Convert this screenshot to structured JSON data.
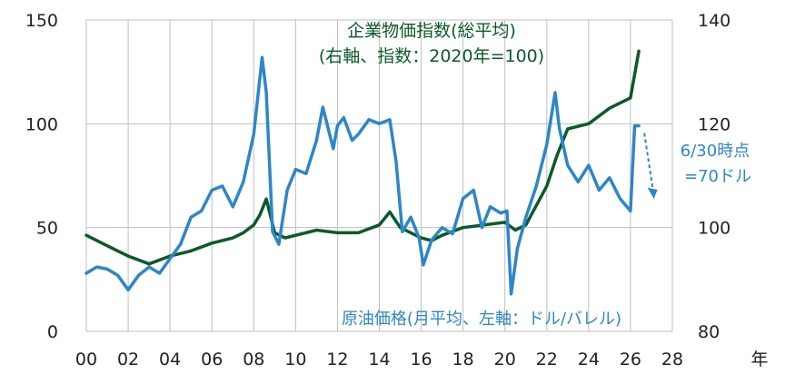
{
  "chart_data": {
    "type": "line",
    "x_tick_labels": [
      "00",
      "02",
      "04",
      "06",
      "08",
      "10",
      "12",
      "14",
      "16",
      "18",
      "20",
      "22",
      "24",
      "26",
      "28"
    ],
    "x_axis_unit": "年",
    "y_left": {
      "ticks": [
        0,
        50,
        100,
        150
      ],
      "range": [
        0,
        150
      ]
    },
    "y_right": {
      "ticks": [
        80,
        100,
        120,
        140
      ],
      "range": [
        80,
        140
      ]
    },
    "colors": {
      "oil": "#2e86c8",
      "cgpi": "#0b5a2a",
      "grid": "#bfbfbf",
      "callout": "#2e86c8"
    },
    "series": [
      {
        "key": "cgpi",
        "name_lines": [
          "企業物価指数(総平均)",
          "(右軸、指数：2020年=100)"
        ],
        "axis": "right",
        "x": [
          2000,
          2001,
          2002,
          2003,
          2004,
          2005,
          2006,
          2007,
          2007.5,
          2008,
          2008.3,
          2008.6,
          2009,
          2009.5,
          2010,
          2011,
          2012,
          2013,
          2014,
          2014.5,
          2015,
          2016,
          2016.5,
          2017,
          2018,
          2019,
          2020,
          2020.5,
          2021,
          2022,
          2022.5,
          2023,
          2024,
          2025,
          2026,
          2026.4
        ],
        "y": [
          98.5,
          96.5,
          94.5,
          93,
          94.5,
          95.5,
          97,
          98,
          99,
          100.5,
          102.5,
          105.5,
          99,
          98,
          98.5,
          99.5,
          99,
          99,
          100.5,
          103,
          100,
          98,
          97.5,
          98.5,
          100,
          100.5,
          101,
          99.5,
          100.5,
          108,
          114,
          119,
          120,
          123,
          125,
          134
        ]
      },
      {
        "key": "oil",
        "name_lines": [
          "原油価格(月平均、左軸：ドル/バレル)"
        ],
        "axis": "left",
        "x": [
          2000,
          2000.5,
          2001,
          2001.5,
          2002,
          2002.5,
          2003,
          2003.5,
          2004,
          2004.5,
          2005,
          2005.5,
          2006,
          2006.5,
          2007,
          2007.5,
          2008,
          2008.4,
          2008.6,
          2008.9,
          2009.2,
          2009.6,
          2010,
          2010.5,
          2011,
          2011.3,
          2011.8,
          2012,
          2012.3,
          2012.7,
          2013,
          2013.5,
          2014,
          2014.5,
          2014.8,
          2015.1,
          2015.5,
          2015.9,
          2016.1,
          2016.5,
          2017,
          2017.5,
          2018,
          2018.5,
          2018.9,
          2019.3,
          2019.8,
          2020.1,
          2020.3,
          2020.6,
          2021,
          2021.5,
          2022,
          2022.4,
          2022.6,
          2023,
          2023.5,
          2024,
          2024.5,
          2025,
          2025.5,
          2026,
          2026.2,
          2026.4
        ],
        "y": [
          28,
          31,
          30,
          27,
          20,
          27,
          31,
          28,
          35,
          42,
          55,
          58,
          68,
          70,
          60,
          72,
          95,
          132,
          115,
          48,
          42,
          68,
          78,
          76,
          92,
          108,
          88,
          99,
          103,
          92,
          95,
          102,
          100,
          102,
          82,
          48,
          55,
          45,
          32,
          44,
          50,
          47,
          64,
          68,
          50,
          60,
          57,
          58,
          18,
          40,
          55,
          70,
          90,
          115,
          98,
          80,
          72,
          80,
          68,
          74,
          64,
          58,
          99,
          99
        ]
      }
    ],
    "callout": {
      "lines": [
        "6/30時点",
        "=70ドル"
      ],
      "x": 2026.9,
      "y_left": 70
    }
  }
}
